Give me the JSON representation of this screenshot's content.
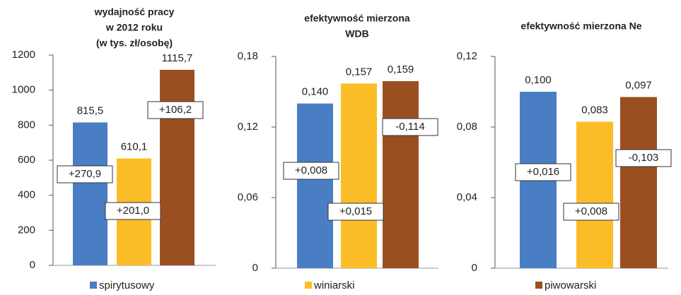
{
  "legend": [
    {
      "name": "spirytusowy",
      "color": "#4a7ec4"
    },
    {
      "name": "winiarski",
      "color": "#fbbd27"
    },
    {
      "name": "piwowarski",
      "color": "#9a4f21"
    }
  ],
  "chart_data": [
    {
      "type": "bar",
      "title": [
        "wydajność pracy",
        "w 2012 roku",
        "(w tys. zł/osobę)"
      ],
      "values": [
        815.5,
        610.1,
        1115.7
      ],
      "value_labels": [
        "815,5",
        "610,1",
        "1115,7"
      ],
      "annotations": [
        "+270,9",
        "+201,0",
        "+106,2"
      ],
      "ylim": [
        0,
        1200
      ],
      "yticks": [
        0,
        200,
        400,
        600,
        800,
        1000,
        1200
      ]
    },
    {
      "type": "bar",
      "title": [
        "efektywność mierzona",
        "WDB"
      ],
      "values": [
        0.14,
        0.157,
        0.159
      ],
      "value_labels": [
        "0,140",
        "0,157",
        "0,159"
      ],
      "annotations": [
        "+0,008",
        "+0,015",
        "-0,114"
      ],
      "ylim": [
        0,
        0.18
      ],
      "yticks": [
        0,
        {
          "value": 0.06,
          "label": "0,06"
        },
        {
          "value": 0.12,
          "label": "0,12"
        },
        {
          "value": 0.18,
          "label": "0,18"
        }
      ]
    },
    {
      "type": "bar",
      "title": [
        "efektywność mierzona Ne"
      ],
      "values": [
        0.1,
        0.083,
        0.097
      ],
      "value_labels": [
        "0,100",
        "0,083",
        "0,097"
      ],
      "annotations": [
        "+0,016",
        "+0,008",
        "-0,103"
      ],
      "ylim": [
        0,
        0.12
      ],
      "yticks": [
        0,
        {
          "value": 0.04,
          "label": "0,04"
        },
        {
          "value": 0.08,
          "label": "0,08"
        },
        {
          "value": 0.12,
          "label": "0,12"
        }
      ]
    }
  ]
}
